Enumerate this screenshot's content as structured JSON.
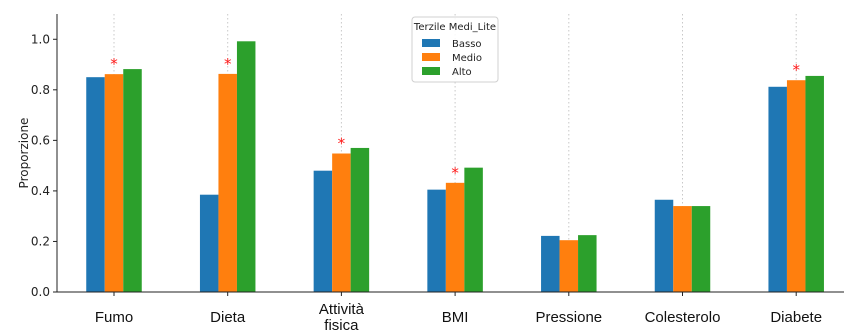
{
  "chart_data": {
    "type": "bar",
    "ylabel": "Proporzione",
    "xlabel": "",
    "ylim": [
      0,
      1.1
    ],
    "yticks": [
      "0.0",
      "0.2",
      "0.4",
      "0.6",
      "0.8",
      "1.0"
    ],
    "grid": "vertical dotted lines at each category",
    "legend_title": "Terzile Medi_Lite",
    "legend_position": "top-center",
    "categories": [
      [
        "Fumo"
      ],
      [
        "Dieta"
      ],
      [
        "Attività",
        "fisica"
      ],
      [
        "BMI"
      ],
      [
        "Pressione"
      ],
      [
        "Colesterolo"
      ],
      [
        "Diabete"
      ]
    ],
    "series": [
      {
        "name": "Basso",
        "color": "#1f77b4",
        "values": [
          0.85,
          0.385,
          0.48,
          0.405,
          0.222,
          0.365,
          0.812
        ]
      },
      {
        "name": "Medio",
        "color": "#ff7f0e",
        "values": [
          0.862,
          0.863,
          0.548,
          0.432,
          0.205,
          0.34,
          0.838
        ]
      },
      {
        "name": "Alto",
        "color": "#2ca02c",
        "values": [
          0.882,
          0.992,
          0.57,
          0.492,
          0.225,
          0.34,
          0.855
        ]
      }
    ],
    "annotations": [
      {
        "category_index": 0,
        "text": "*",
        "color": "#ff1a1a"
      },
      {
        "category_index": 1,
        "text": "*",
        "color": "#ff1a1a"
      },
      {
        "category_index": 2,
        "text": "*",
        "color": "#ff1a1a"
      },
      {
        "category_index": 3,
        "text": "*",
        "color": "#ff1a1a"
      },
      {
        "category_index": 6,
        "text": "*",
        "color": "#ff1a1a"
      }
    ]
  }
}
